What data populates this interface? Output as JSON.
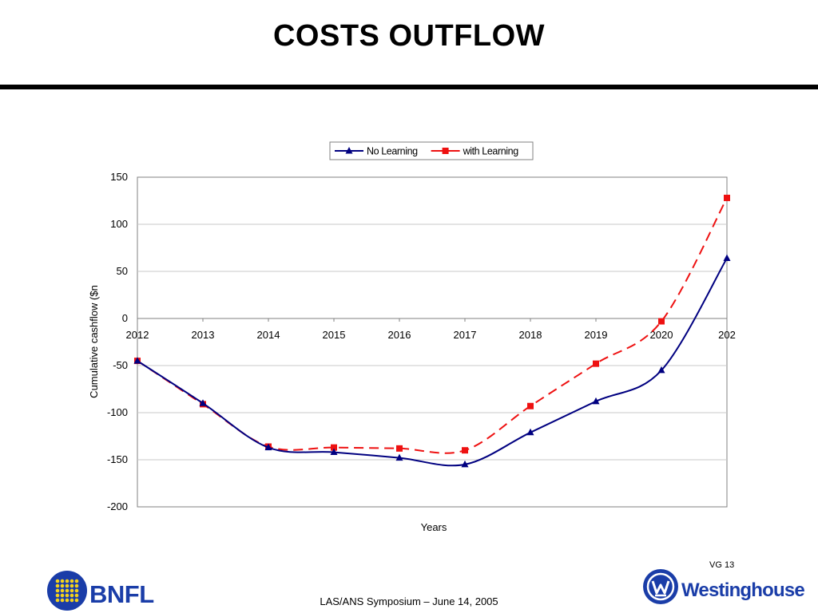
{
  "slide": {
    "title": "COSTS OUTFLOW",
    "slide_number": "VG 13",
    "footer": "LAS/ANS Symposium – June 14, 2005"
  },
  "logos": {
    "left": {
      "text": "BNFL",
      "color": "#1a3da8",
      "icon": "bnfl-dot-grid-icon"
    },
    "right": {
      "text": "Westinghouse",
      "color": "#1a3da8",
      "icon": "westinghouse-w-circle-icon"
    }
  },
  "chart_data": {
    "type": "line",
    "title": "",
    "xlabel": "Years",
    "ylabel": "Cumulative cashflow ($n",
    "categories": [
      "2012",
      "2013",
      "2014",
      "2015",
      "2016",
      "2017",
      "2018",
      "2019",
      "2020",
      "202"
    ],
    "ylim": [
      -200,
      150
    ],
    "yticks": [
      150,
      100,
      50,
      0,
      -50,
      -100,
      -150,
      -200
    ],
    "grid": true,
    "legend": "top-center",
    "series": [
      {
        "name": "No Learning",
        "color": "#000080",
        "marker": "triangle",
        "line_style": "solid",
        "values": [
          -45,
          -90,
          -137,
          -142,
          -148,
          -155,
          -121,
          -88,
          -55,
          64
        ]
      },
      {
        "name": "with Learning",
        "color": "#ee1111",
        "marker": "square",
        "line_style": "dashed",
        "values": [
          -45,
          -91,
          -136,
          -137,
          -138,
          -140,
          -93,
          -48,
          -3,
          128
        ]
      }
    ]
  }
}
